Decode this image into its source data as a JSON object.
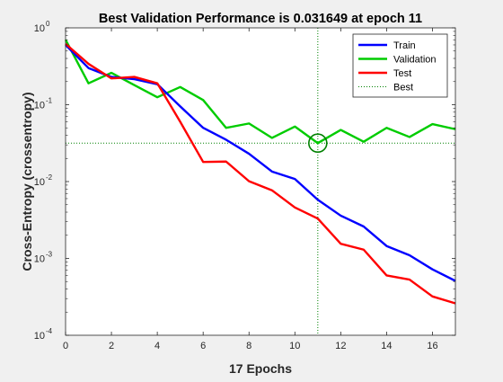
{
  "chart_data": {
    "type": "line",
    "title": "Best Validation Performance is 0.031649 at epoch 11",
    "xlabel": "17 Epochs",
    "ylabel": "Cross-Entropy  (crossentropy)",
    "x_scale": "linear",
    "y_scale": "log",
    "xlim": [
      0,
      17
    ],
    "ylim": [
      0.0001,
      1
    ],
    "x_ticks": [
      0,
      2,
      4,
      6,
      8,
      10,
      12,
      14,
      16
    ],
    "y_ticks": [
      {
        "value": 0.0001,
        "mantissa": "10",
        "exp": "-4"
      },
      {
        "value": 0.001,
        "mantissa": "10",
        "exp": "-3"
      },
      {
        "value": 0.01,
        "mantissa": "10",
        "exp": "-2"
      },
      {
        "value": 0.1,
        "mantissa": "10",
        "exp": "-1"
      },
      {
        "value": 1,
        "mantissa": "10",
        "exp": "0"
      }
    ],
    "grid": false,
    "legend_position": "top-right",
    "x": [
      0,
      1,
      2,
      3,
      4,
      5,
      6,
      7,
      8,
      9,
      10,
      11,
      12,
      13,
      14,
      15,
      16,
      17
    ],
    "series": [
      {
        "name": "Train",
        "color": "#0000ff",
        "values": [
          0.6,
          0.3,
          0.23,
          0.215,
          0.185,
          0.095,
          0.05,
          0.035,
          0.023,
          0.0135,
          0.0108,
          0.0058,
          0.0036,
          0.0026,
          0.00145,
          0.0011,
          0.00072,
          0.00051
        ]
      },
      {
        "name": "Validation",
        "color": "#00cc00",
        "values": [
          0.7,
          0.19,
          0.26,
          0.18,
          0.125,
          0.17,
          0.115,
          0.05,
          0.057,
          0.037,
          0.052,
          0.031649,
          0.047,
          0.033,
          0.05,
          0.038,
          0.056,
          0.048
        ]
      },
      {
        "name": "Test",
        "color": "#ff0000",
        "values": [
          0.62,
          0.34,
          0.22,
          0.23,
          0.19,
          0.06,
          0.018,
          0.0182,
          0.0101,
          0.0077,
          0.0046,
          0.0033,
          0.00155,
          0.0013,
          0.0006,
          0.00053,
          0.00032,
          0.00026
        ]
      }
    ],
    "best": {
      "name": "Best",
      "epoch": 11,
      "value": 0.031649,
      "color": "#008000",
      "style": "dotted"
    }
  }
}
